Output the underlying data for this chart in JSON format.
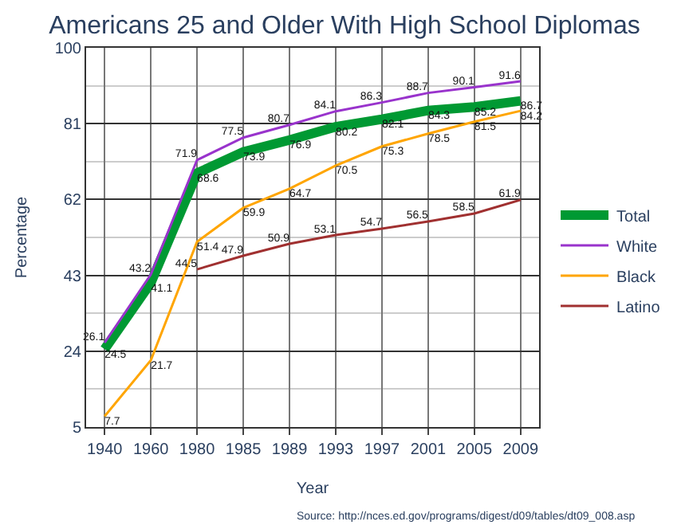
{
  "chart_data": {
    "type": "line",
    "title": "Americans 25 and Older With High School Diplomas",
    "xlabel": "Year",
    "ylabel": "Percentage",
    "categories": [
      "1940",
      "1960",
      "1980",
      "1985",
      "1989",
      "1993",
      "1997",
      "2001",
      "2005",
      "2009"
    ],
    "series": [
      {
        "name": "Total",
        "color": "#009933",
        "values": [
          24.5,
          41.1,
          68.6,
          73.9,
          76.9,
          80.2,
          82.1,
          84.3,
          85.2,
          86.7
        ]
      },
      {
        "name": "White",
        "color": "#9933cc",
        "values": [
          26.1,
          43.2,
          71.9,
          77.5,
          80.7,
          84.1,
          86.3,
          88.7,
          90.1,
          91.6
        ]
      },
      {
        "name": "Black",
        "color": "#ffa500",
        "values": [
          7.7,
          21.7,
          51.4,
          59.9,
          64.7,
          70.5,
          75.3,
          78.5,
          81.5,
          84.2
        ]
      },
      {
        "name": "Latino",
        "color": "#a03030",
        "values": [
          null,
          null,
          44.5,
          47.9,
          50.9,
          53.1,
          54.7,
          56.5,
          58.5,
          61.9
        ]
      }
    ],
    "ylim": [
      5,
      100
    ],
    "yticks": [
      5,
      24,
      43,
      62,
      81,
      100
    ],
    "grid": true,
    "legend": "right",
    "data_labels": true,
    "marker": "none",
    "line_style": "solid",
    "annotations": [
      "Source: http://nces.ed.gov/programs/digest/d09/tables/dt09_008.asp"
    ]
  }
}
